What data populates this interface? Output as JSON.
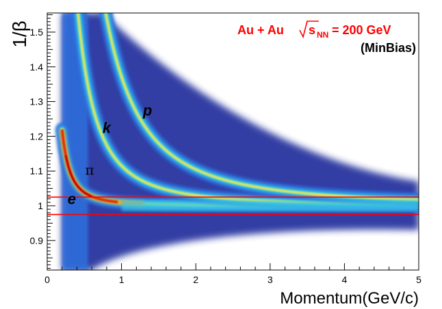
{
  "chart_data": {
    "type": "heatmap",
    "title": "",
    "xlabel": "Momentum(GeV/c)",
    "ylabel": "1/β",
    "xlim": [
      0,
      5
    ],
    "ylim": [
      0.815,
      1.555
    ],
    "x_ticks": [
      0,
      1,
      2,
      3,
      4,
      5
    ],
    "y_ticks": [
      0.9,
      1,
      1.1,
      1.2,
      1.3,
      1.4,
      1.5
    ],
    "x_tick_labels": [
      "0",
      "1",
      "2",
      "3",
      "4",
      "5"
    ],
    "y_tick_labels": [
      "0.9",
      "1",
      "1.1",
      "1.2",
      "1.3",
      "1.4",
      "1.5"
    ],
    "grid": false,
    "annotations": {
      "collision_left": "Au + Au",
      "sqrt_s_base": "s",
      "sqrt_s_subscript": "NN",
      "energy": "= 200 GeV",
      "trigger": "(MinBias)",
      "energy_color": "#ff0000"
    },
    "bands": [
      {
        "label": "π",
        "mass_gev": 0.1396,
        "label_at": [
          0.57,
          1.09
        ]
      },
      {
        "label": "k",
        "mass_gev": 0.4937,
        "label_at": [
          0.8,
          1.21
        ]
      },
      {
        "label": "p",
        "mass_gev": 0.9383,
        "label_at": [
          1.35,
          1.26
        ]
      },
      {
        "label": "e",
        "mass_gev": 0.000511,
        "label_at": [
          0.33,
          1.005
        ]
      }
    ],
    "selection_cut_lines": [
      {
        "y": 1.025,
        "color": "#ff0000"
      },
      {
        "y": 0.975,
        "color": "#ff0000"
      }
    ],
    "momentum_threshold": 0.2,
    "colorscale": [
      "#ffffff",
      "#1a2a9a",
      "#2f6fdd",
      "#35c6e6",
      "#8fe0a0",
      "#f0e050",
      "#f0a020",
      "#e03010",
      "#c00000"
    ]
  }
}
